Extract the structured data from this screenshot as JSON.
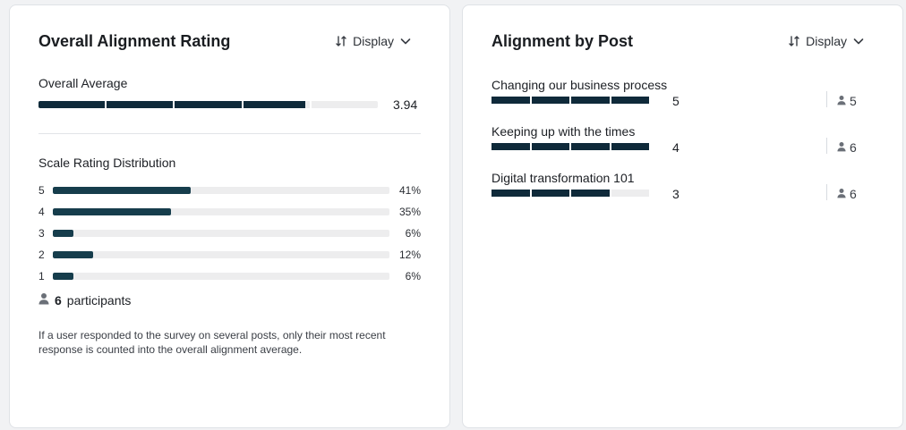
{
  "colors": {
    "bar_fill": "#0f2a3a",
    "bar_empty": "#ededee",
    "dist_fill": "#163d4c"
  },
  "icons": {
    "sort": "sort-arrows-icon",
    "chevron": "chevron-down-icon",
    "person": "person-icon"
  },
  "overall": {
    "title": "Overall Alignment Rating",
    "display_label": "Display",
    "average_label": "Overall Average",
    "average_value": "3.94",
    "average_numeric": 3.94,
    "scale_max": 5,
    "distribution_label": "Scale Rating Distribution",
    "distribution": [
      {
        "rating": "5",
        "percent_label": "41%",
        "percent": 41
      },
      {
        "rating": "4",
        "percent_label": "35%",
        "percent": 35
      },
      {
        "rating": "3",
        "percent_label": "6%",
        "percent": 6
      },
      {
        "rating": "2",
        "percent_label": "12%",
        "percent": 12
      },
      {
        "rating": "1",
        "percent_label": "6%",
        "percent": 6
      }
    ],
    "participants_count": "6",
    "participants_label": "participants",
    "note": "If a user responded to the survey on several posts, only their most recent response is counted into the overall alignment average."
  },
  "by_post": {
    "title": "Alignment by Post",
    "display_label": "Display",
    "posts": [
      {
        "title": "Changing our business process",
        "score": "5",
        "score_numeric": 5,
        "participants": "5"
      },
      {
        "title": "Keeping up with the times",
        "score": "4",
        "score_numeric": 4,
        "participants": "6"
      },
      {
        "title": "Digital transformation 101",
        "score": "3",
        "score_numeric": 3,
        "participants": "6"
      }
    ]
  }
}
